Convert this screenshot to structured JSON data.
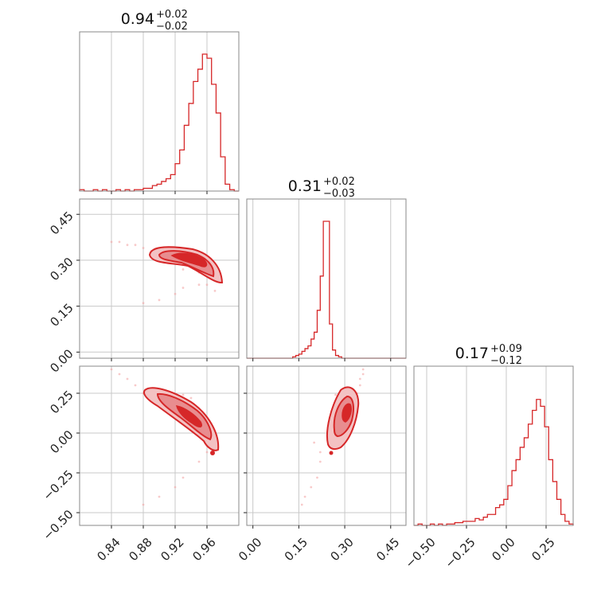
{
  "chart_data": {
    "type": "corner",
    "colors": {
      "main": "#d62728",
      "fill_light": "#f3c2c3",
      "fill_mid": "#e88d8f",
      "scatter": "#f4a6a6",
      "grid": "#c8c8c8",
      "frame": "#888888"
    },
    "grid": true,
    "params": [
      {
        "range": [
          0.8,
          1.0
        ],
        "ticks": [
          0.84,
          0.88,
          0.92,
          0.96
        ],
        "tick_labels": [
          "0.84",
          "0.88",
          "0.92",
          "0.96"
        ],
        "title": {
          "value": "0.94",
          "plus": "+0.02",
          "minus": "−0.02"
        },
        "hist": [
          1,
          0,
          0,
          1,
          0,
          1,
          0,
          0,
          1,
          0,
          1,
          0,
          1,
          1,
          2,
          2,
          4,
          5,
          7,
          9,
          12,
          20,
          30,
          48,
          64,
          80,
          89,
          100,
          97,
          78,
          57,
          25,
          5,
          1,
          0
        ]
      },
      {
        "range": [
          -0.02,
          0.5
        ],
        "ticks": [
          0.0,
          0.15,
          0.3,
          0.45
        ],
        "tick_labels": [
          "0.00",
          "0.15",
          "0.30",
          "0.45"
        ],
        "y_tick_labels": [
          "0.00",
          "0.15",
          "0.30",
          "0.45"
        ],
        "title": {
          "value": "0.31",
          "plus": "+0.02",
          "minus": "−0.03"
        },
        "hist": [
          0,
          0,
          0,
          0,
          0,
          0,
          0,
          0,
          0,
          0,
          0,
          0,
          0,
          0,
          0,
          1,
          2,
          3,
          5,
          7,
          9,
          14,
          19,
          35,
          60,
          100,
          100,
          25,
          6,
          2,
          1,
          0,
          0,
          0,
          0,
          0,
          0,
          0,
          0,
          0,
          0,
          0,
          0,
          0,
          0,
          0,
          0,
          0,
          0,
          0,
          0,
          0
        ]
      },
      {
        "range": [
          -0.58,
          0.42
        ],
        "ticks": [
          -0.5,
          -0.25,
          0.0,
          0.25
        ],
        "tick_labels": [
          "−0.50",
          "−0.25",
          "0.00",
          "0.25"
        ],
        "y_tick_labels": [
          "−0.50",
          "−0.25",
          "0.00",
          "0.25"
        ],
        "title": {
          "value": "0.17",
          "plus": "+0.09",
          "minus": "−0.12"
        },
        "hist": [
          0,
          1,
          0,
          0,
          1,
          0,
          1,
          0,
          1,
          1,
          2,
          2,
          3,
          3,
          3,
          5,
          4,
          6,
          8,
          8,
          13,
          15,
          19,
          29,
          40,
          48,
          57,
          64,
          74,
          84,
          92,
          87,
          72,
          48,
          32,
          19,
          8,
          3,
          1
        ]
      }
    ],
    "scatter_samples": [
      [
        0.9,
        0.33,
        0.18
      ],
      [
        0.91,
        0.32,
        0.17
      ],
      [
        0.92,
        0.32,
        0.15
      ],
      [
        0.93,
        0.31,
        0.13
      ],
      [
        0.94,
        0.31,
        0.11
      ],
      [
        0.95,
        0.29,
        0.08
      ],
      [
        0.96,
        0.27,
        0.04
      ],
      [
        0.97,
        0.26,
        0.0
      ],
      [
        0.89,
        0.33,
        0.22
      ],
      [
        0.88,
        0.34,
        0.25
      ],
      [
        0.87,
        0.35,
        0.3
      ],
      [
        0.86,
        0.35,
        0.34
      ],
      [
        0.85,
        0.36,
        0.37
      ],
      [
        0.84,
        0.36,
        0.4
      ],
      [
        0.97,
        0.2,
        -0.06
      ],
      [
        0.96,
        0.22,
        -0.12
      ],
      [
        0.95,
        0.22,
        -0.18
      ],
      [
        0.93,
        0.21,
        -0.28
      ],
      [
        0.92,
        0.19,
        -0.34
      ],
      [
        0.9,
        0.17,
        -0.4
      ],
      [
        0.88,
        0.16,
        -0.45
      ],
      [
        0.94,
        0.29,
        0.22
      ],
      [
        0.93,
        0.27,
        0.24
      ],
      [
        0.95,
        0.26,
        0.1
      ],
      [
        0.92,
        0.3,
        0.2
      ]
    ]
  }
}
